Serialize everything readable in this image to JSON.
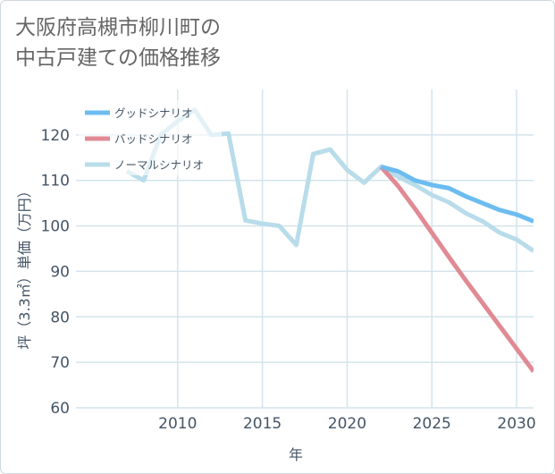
{
  "title_line1": "大阪府高槻市柳川町の",
  "title_line2": "中古戸建ての価格推移",
  "chart_data": {
    "type": "line",
    "xlabel": "年",
    "ylabel": "坪（3.3㎡）単価（万円）",
    "xlim": [
      2004,
      2031
    ],
    "ylim": [
      60,
      130
    ],
    "xticks": [
      2010,
      2015,
      2020,
      2025,
      2030
    ],
    "yticks": [
      60,
      70,
      80,
      90,
      100,
      110,
      120
    ],
    "grid": true,
    "legend_position": "top-left",
    "series": [
      {
        "name": "グッドシナリオ",
        "color": "#6cbcf0",
        "x": [
          2022,
          2023,
          2024,
          2025,
          2026,
          2027,
          2028,
          2029,
          2030,
          2031
        ],
        "y": [
          113,
          112,
          110,
          109,
          108.3,
          106.5,
          105,
          103.5,
          102.5,
          101
        ]
      },
      {
        "name": "バッドシナリオ",
        "color": "#e08a94",
        "x": [
          2022,
          2023,
          2024,
          2025,
          2026,
          2027,
          2028,
          2029,
          2030,
          2031
        ],
        "y": [
          113,
          108.8,
          103.8,
          98.5,
          93.2,
          88,
          83,
          78,
          73,
          68
        ]
      },
      {
        "name": "ノーマルシナリオ",
        "color": "#b8dcea",
        "x": [
          2007,
          2008,
          2009,
          2010,
          2011,
          2012,
          2013,
          2014,
          2015,
          2016,
          2017,
          2018,
          2019,
          2020,
          2021,
          2022,
          2023,
          2024,
          2025,
          2026,
          2027,
          2028,
          2029,
          2030,
          2031
        ],
        "y": [
          112,
          110,
          120,
          123,
          125.5,
          120,
          120.3,
          101.2,
          100.5,
          100,
          95.8,
          115.8,
          116.8,
          112.3,
          109.5,
          113,
          110.8,
          109,
          106.8,
          105.2,
          102.8,
          101,
          98.5,
          97,
          94.5
        ]
      }
    ]
  }
}
